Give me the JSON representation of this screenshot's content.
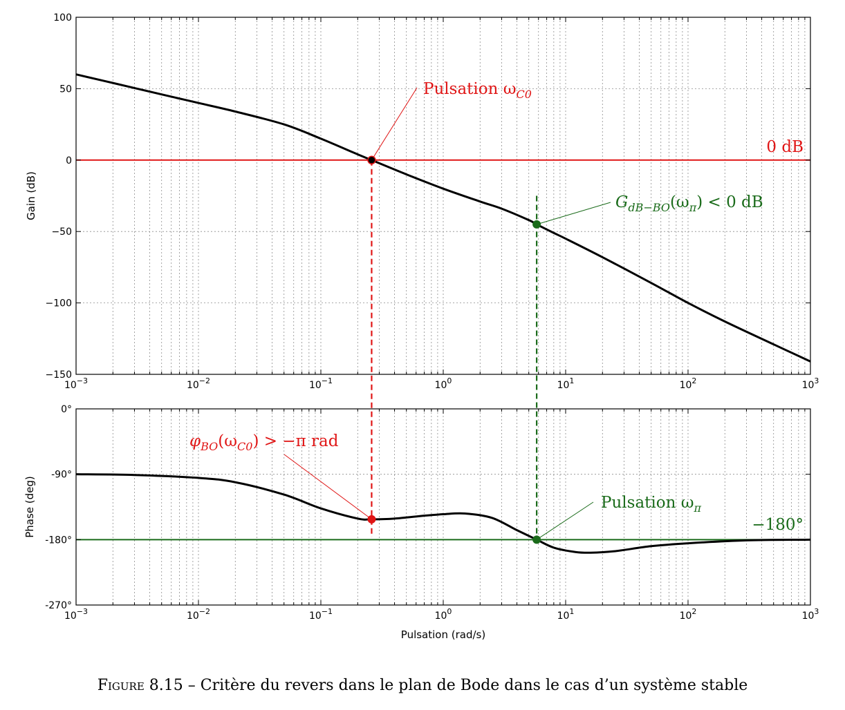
{
  "caption": {
    "label": "Figure 8.15",
    "separator": " – ",
    "text": "Critère du revers dans le plan de Bode dans le cas d’un système stable"
  },
  "colors": {
    "curve": "#000000",
    "red": "#e01515",
    "green": "#1a6b1a"
  },
  "chart_data": [
    {
      "type": "line",
      "panel": "gain",
      "xscale": "log",
      "xlim": [
        0.001,
        1000
      ],
      "ylim": [
        -150,
        100
      ],
      "ylabel": "Gain (dB)",
      "xlabel": "",
      "grid": true,
      "xtick_labels": [
        {
          "base": "10",
          "exp": "−3"
        },
        {
          "base": "10",
          "exp": "−2"
        },
        {
          "base": "10",
          "exp": "−1"
        },
        {
          "base": "10",
          "exp": "0"
        },
        {
          "base": "10",
          "exp": "1"
        },
        {
          "base": "10",
          "exp": "2"
        },
        {
          "base": "10",
          "exp": "3"
        }
      ],
      "ytick_labels": [
        "100",
        "50",
        "0",
        "−50",
        "−100",
        "−150"
      ],
      "ytick_values": [
        100,
        50,
        0,
        -50,
        -100,
        -150
      ],
      "series": [
        {
          "x": [
            0.001,
            0.002,
            0.005,
            0.01,
            0.02,
            0.05,
            0.1,
            0.2,
            0.26,
            0.5,
            1,
            2,
            3,
            5,
            5.8,
            8,
            10,
            20,
            50,
            100,
            200,
            500,
            1000
          ],
          "y": [
            60,
            54,
            46,
            40,
            34,
            25,
            15,
            4,
            0,
            -10,
            -20,
            -29,
            -34,
            -42,
            -45,
            -51,
            -55,
            -68,
            -86,
            -100,
            -113,
            -129,
            -141
          ]
        }
      ],
      "reference_line": {
        "y": 0,
        "label": "0 dB"
      },
      "annotations": [
        {
          "point": [
            0.26,
            0
          ],
          "text_main": "Pulsation ω",
          "text_sub": "C0"
        },
        {
          "point": [
            5.8,
            -45
          ],
          "text_pre": "G",
          "text_sub": "dB−BO",
          "text_post": "(ω",
          "text_sub2": "π",
          "text_tail": ") < 0 dB"
        }
      ]
    },
    {
      "type": "line",
      "panel": "phase",
      "xscale": "log",
      "xlim": [
        0.001,
        1000
      ],
      "ylim": [
        -270,
        0
      ],
      "ylabel": "Phase (deg)",
      "xlabel": "Pulsation (rad/s)",
      "grid": true,
      "xtick_labels": [
        {
          "base": "10",
          "exp": "−3"
        },
        {
          "base": "10",
          "exp": "−2"
        },
        {
          "base": "10",
          "exp": "−1"
        },
        {
          "base": "10",
          "exp": "0"
        },
        {
          "base": "10",
          "exp": "1"
        },
        {
          "base": "10",
          "exp": "2"
        },
        {
          "base": "10",
          "exp": "3"
        }
      ],
      "ytick_labels": [
        "0°",
        "-90°",
        "-180°",
        "-270°"
      ],
      "ytick_values": [
        0,
        -90,
        -180,
        -270
      ],
      "series": [
        {
          "x": [
            0.001,
            0.003,
            0.01,
            0.02,
            0.05,
            0.1,
            0.2,
            0.26,
            0.4,
            0.7,
            1,
            1.5,
            2.5,
            4,
            5.8,
            8,
            12,
            16,
            25,
            50,
            100,
            300,
            1000
          ],
          "y": [
            -90,
            -91,
            -95,
            -101,
            -118,
            -137,
            -151,
            -152,
            -151,
            -147,
            -145,
            -144,
            -150,
            -167,
            -180,
            -191,
            -197,
            -198,
            -196,
            -189,
            -185,
            -181,
            -180
          ]
        }
      ],
      "reference_line": {
        "y": -180,
        "label": "−180°"
      },
      "annotations": [
        {
          "point": [
            0.26,
            -152
          ],
          "text_pre": "φ",
          "text_sub": "BO",
          "text_post": "(ω",
          "text_sub2": "C0",
          "text_tail": ") > −π rad"
        },
        {
          "point": [
            5.8,
            -180
          ],
          "text_main": "Pulsation ω",
          "text_sub": "π"
        }
      ]
    }
  ]
}
